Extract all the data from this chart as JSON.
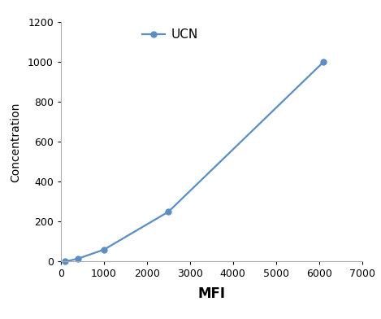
{
  "x": [
    100,
    400,
    1000,
    2500,
    6100
  ],
  "y": [
    0,
    15,
    60,
    250,
    1000
  ],
  "line_color": "#5b8ec4",
  "marker": "o",
  "marker_size": 5,
  "legend_label": "UCN",
  "xlabel": "MFI",
  "ylabel": "Concentration",
  "xlim": [
    0,
    7000
  ],
  "ylim": [
    0,
    1200
  ],
  "xticks": [
    0,
    1000,
    2000,
    3000,
    4000,
    5000,
    6000,
    7000
  ],
  "yticks": [
    0,
    200,
    400,
    600,
    800,
    1000,
    1200
  ],
  "xlabel_fontsize": 12,
  "ylabel_fontsize": 10,
  "tick_fontsize": 9,
  "legend_fontsize": 11,
  "background_color": "#ffffff",
  "spine_color": "#aaaaaa",
  "linewidth": 1.6
}
